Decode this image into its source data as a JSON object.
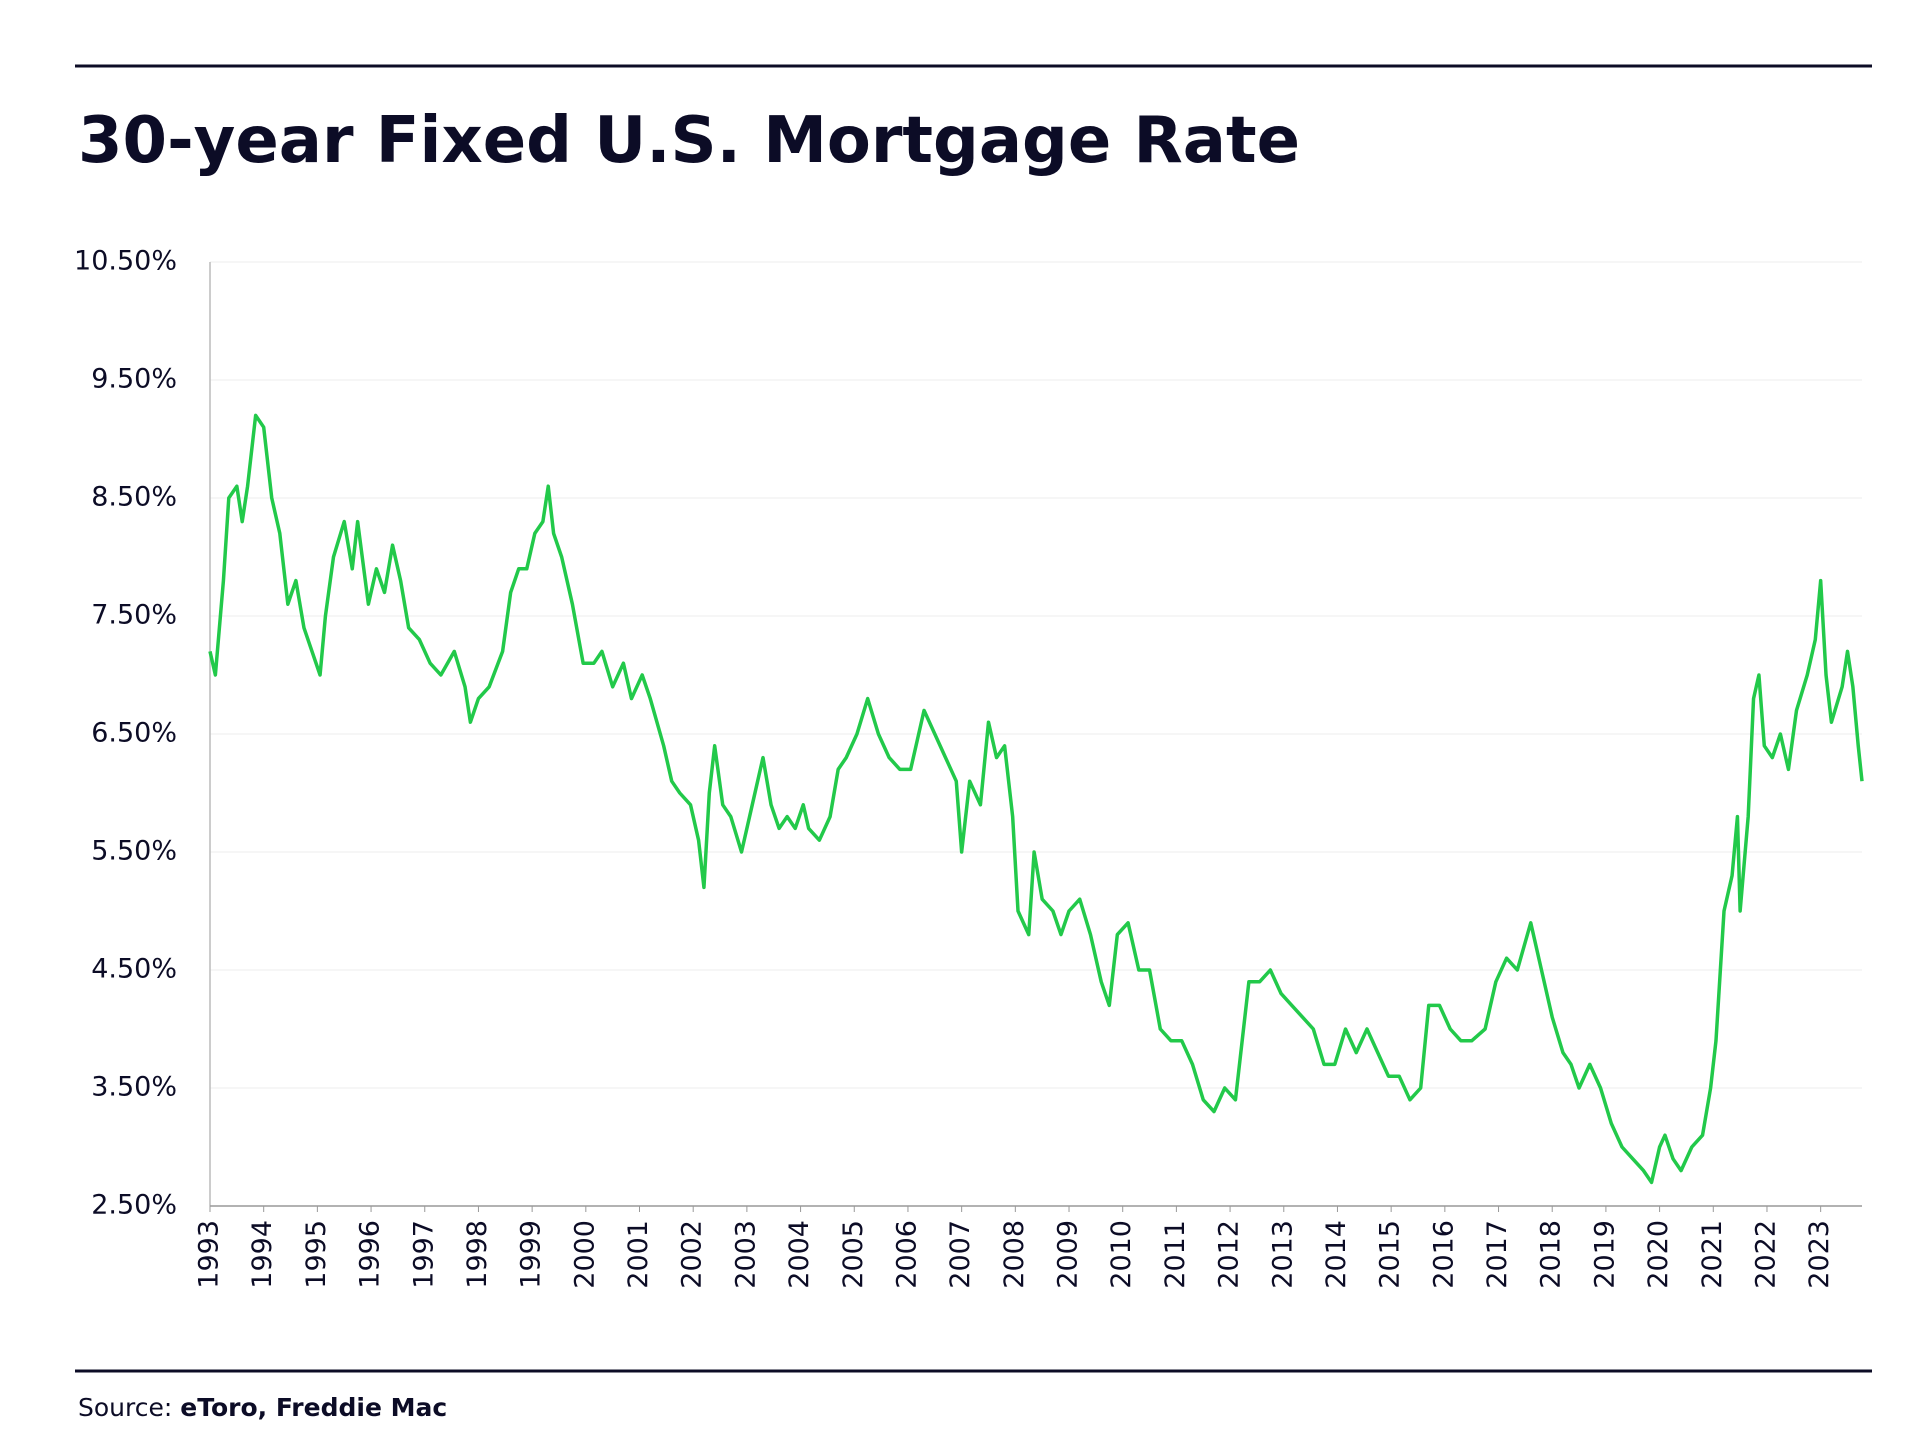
{
  "chart_data": {
    "type": "line",
    "title": "30-year Fixed U.S. Mortgage Rate",
    "source_label": "Source:",
    "source": "eToro, Freddie Mac",
    "x": [
      1993.0,
      1993.1,
      1993.25,
      1993.35,
      1993.5,
      1993.6,
      1993.7,
      1993.85,
      1994.0,
      1994.15,
      1994.3,
      1994.45,
      1994.6,
      1994.75,
      1994.9,
      1995.05,
      1995.15,
      1995.3,
      1995.5,
      1995.65,
      1995.75,
      1995.95,
      1996.1,
      1996.25,
      1996.4,
      1996.55,
      1996.7,
      1996.9,
      1997.1,
      1997.3,
      1997.55,
      1997.75,
      1997.85,
      1998.0,
      1998.2,
      1998.45,
      1998.6,
      1998.75,
      1998.9,
      1999.05,
      1999.2,
      1999.3,
      1999.4,
      1999.55,
      1999.75,
      1999.95,
      2000.15,
      2000.3,
      2000.5,
      2000.7,
      2000.85,
      2001.05,
      2001.2,
      2001.45,
      2001.6,
      2001.75,
      2001.95,
      2002.1,
      2002.2,
      2002.3,
      2002.4,
      2002.55,
      2002.7,
      2002.9,
      2003.1,
      2003.3,
      2003.45,
      2003.6,
      2003.75,
      2003.9,
      2004.05,
      2004.15,
      2004.35,
      2004.55,
      2004.7,
      2004.85,
      2005.05,
      2005.25,
      2005.45,
      2005.65,
      2005.85,
      2006.05,
      2006.3,
      2006.5,
      2006.7,
      2006.9,
      2007.0,
      2007.15,
      2007.35,
      2007.5,
      2007.65,
      2007.8,
      2007.95,
      2008.05,
      2008.25,
      2008.35,
      2008.5,
      2008.7,
      2008.85,
      2009.0,
      2009.2,
      2009.4,
      2009.6,
      2009.75,
      2009.9,
      2010.1,
      2010.3,
      2010.5,
      2010.7,
      2010.9,
      2011.1,
      2011.3,
      2011.5,
      2011.7,
      2011.9,
      2012.1,
      2012.35,
      2012.55,
      2012.75,
      2012.95,
      2013.15,
      2013.35,
      2013.55,
      2013.75,
      2013.95,
      2014.15,
      2014.35,
      2014.55,
      2014.75,
      2014.95,
      2015.15,
      2015.35,
      2015.55,
      2015.7,
      2015.9,
      2016.1,
      2016.3,
      2016.5,
      2016.75,
      2016.95,
      2017.15,
      2017.35,
      2017.6,
      2017.8,
      2018.0,
      2018.2,
      2018.35,
      2018.5,
      2018.7,
      2018.9,
      2019.1,
      2019.3,
      2019.5,
      2019.7,
      2019.85,
      2020.0,
      2020.1,
      2020.25,
      2020.4,
      2020.6,
      2020.8,
      2020.95,
      2021.05,
      2021.2,
      2021.35,
      2021.45,
      2021.5,
      2021.65,
      2021.75,
      2021.85,
      2021.95,
      2022.1,
      2022.25,
      2022.4,
      2022.55,
      2022.75,
      2022.9,
      2023.0,
      2023.1,
      2023.2,
      2023.4,
      2023.5,
      2023.6,
      2023.7,
      2023.77
    ],
    "series": [
      {
        "name": "30-year Fixed",
        "color": "#22c94a",
        "values": [
          7.2,
          7.0,
          7.8,
          8.5,
          8.6,
          8.3,
          8.6,
          9.2,
          9.1,
          8.5,
          8.2,
          7.6,
          7.8,
          7.4,
          7.2,
          7.0,
          7.5,
          8.0,
          8.3,
          7.9,
          8.3,
          7.6,
          7.9,
          7.7,
          8.1,
          7.8,
          7.4,
          7.3,
          7.1,
          7.0,
          7.2,
          6.9,
          6.6,
          6.8,
          6.9,
          7.2,
          7.7,
          7.9,
          7.9,
          8.2,
          8.3,
          8.6,
          8.2,
          8.0,
          7.6,
          7.1,
          7.1,
          7.2,
          6.9,
          7.1,
          6.8,
          7.0,
          6.8,
          6.4,
          6.1,
          6.0,
          5.9,
          5.6,
          5.2,
          6.0,
          6.4,
          5.9,
          5.8,
          5.5,
          5.9,
          6.3,
          5.9,
          5.7,
          5.8,
          5.7,
          5.9,
          5.7,
          5.6,
          5.8,
          6.2,
          6.3,
          6.5,
          6.8,
          6.5,
          6.3,
          6.2,
          6.2,
          6.7,
          6.5,
          6.3,
          6.1,
          5.5,
          6.1,
          5.9,
          6.6,
          6.3,
          6.4,
          5.8,
          5.0,
          4.8,
          5.5,
          5.1,
          5.0,
          4.8,
          5.0,
          5.1,
          4.8,
          4.4,
          4.2,
          4.8,
          4.9,
          4.5,
          4.5,
          4.0,
          3.9,
          3.9,
          3.7,
          3.4,
          3.3,
          3.5,
          3.4,
          4.4,
          4.4,
          4.5,
          4.3,
          4.2,
          4.1,
          4.0,
          3.7,
          3.7,
          4.0,
          3.8,
          4.0,
          3.8,
          3.6,
          3.6,
          3.4,
          3.5,
          4.2,
          4.2,
          4.0,
          3.9,
          3.9,
          4.0,
          4.4,
          4.6,
          4.5,
          4.9,
          4.5,
          4.1,
          3.8,
          3.7,
          3.5,
          3.7,
          3.5,
          3.2,
          3.0,
          2.9,
          2.8,
          2.7,
          3.0,
          3.1,
          2.9,
          2.8,
          3.0,
          3.1,
          3.5,
          3.9,
          5.0,
          5.3,
          5.8,
          5.0,
          5.8,
          6.8,
          7.0,
          6.4,
          6.3,
          6.5,
          6.2,
          6.7,
          7.0,
          7.3,
          7.8,
          7.0,
          6.6,
          6.9,
          7.2,
          6.9,
          6.4,
          6.1
        ]
      }
    ],
    "xlim": [
      1993,
      2023.77
    ],
    "xticks": [
      1993,
      1994,
      1995,
      1996,
      1997,
      1998,
      1999,
      2000,
      2001,
      2002,
      2003,
      2004,
      2005,
      2006,
      2007,
      2008,
      2009,
      2010,
      2011,
      2012,
      2013,
      2014,
      2015,
      2016,
      2017,
      2018,
      2019,
      2020,
      2021,
      2022,
      2023
    ],
    "ylim": [
      2.5,
      10.5
    ],
    "yticks": [
      {
        "value": 2.5,
        "label": "2.50%"
      },
      {
        "value": 3.5,
        "label": "3.50%"
      },
      {
        "value": 4.5,
        "label": "4.50%"
      },
      {
        "value": 5.5,
        "label": "5.50%"
      },
      {
        "value": 6.5,
        "label": "6.50%"
      },
      {
        "value": 7.5,
        "label": "7.50%"
      },
      {
        "value": 8.5,
        "label": "8.50%"
      },
      {
        "value": 9.5,
        "label": "9.50%"
      },
      {
        "value": 10.5,
        "label": "10.50%"
      }
    ],
    "grid": true
  }
}
